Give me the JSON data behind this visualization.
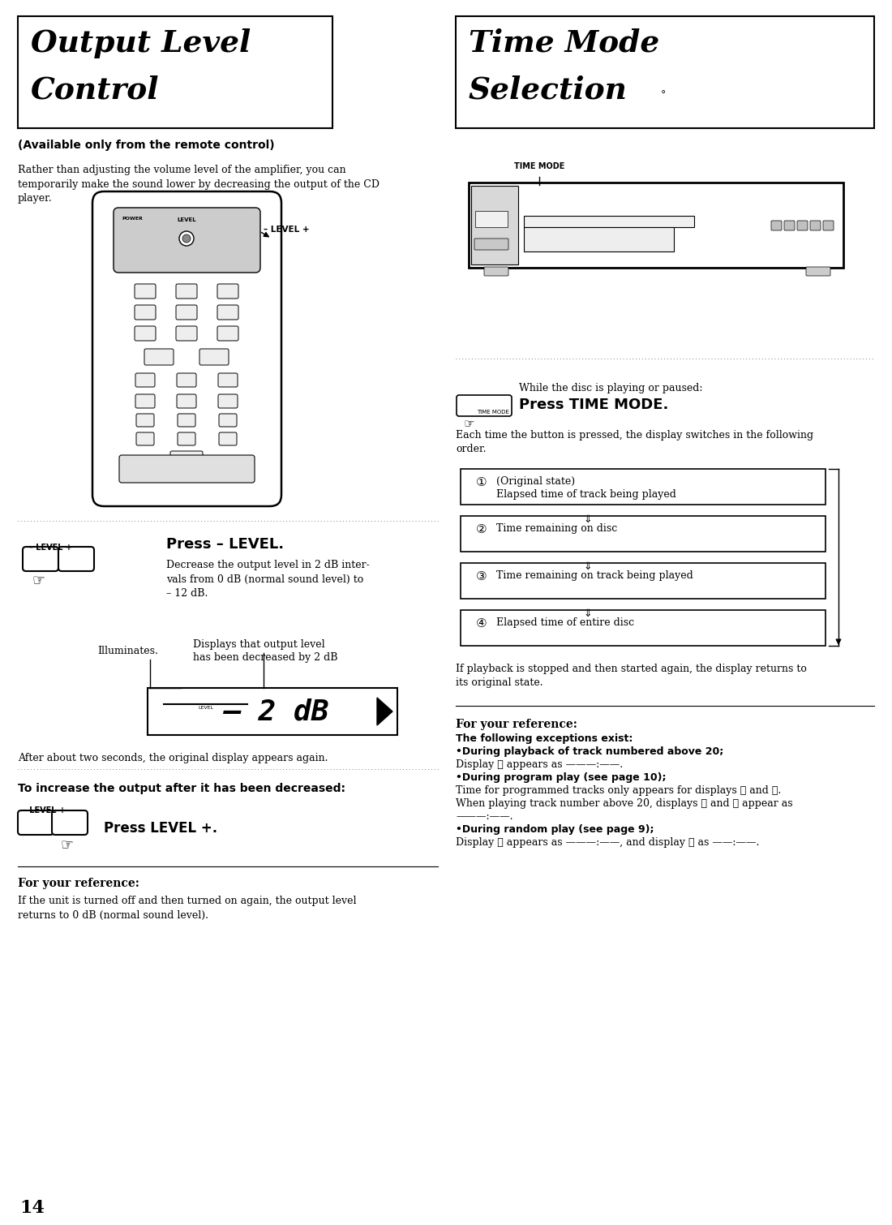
{
  "bg_color": "#ffffff",
  "page_number": "14",
  "left_title_line1": "Output Level",
  "left_title_line2": "Control",
  "right_title_line1": "Time Mode",
  "right_title_line2": "Selection",
  "left_subtitle": "(Available only from the remote control)",
  "left_body1": "Rather than adjusting the volume level of the amplifier, you can\ntemporarily make the sound lower by decreasing the output of the CD\nplayer.",
  "press_minus_level_title": "Press – LEVEL.",
  "press_minus_level_body": "Decrease the output level in 2 dB inter-\nvals from 0 dB (normal sound level) to\n– 12 dB.",
  "illuminates_label": "Illuminates.",
  "display_label": "Displays that output level\nhas been decreased by 2 dB",
  "after_seconds": "After about two seconds, the original display appears again.",
  "increase_title": "To increase the output after it has been decreased:",
  "press_level_plus": "Press LEVEL +.",
  "for_ref_left_title": "For your reference:",
  "for_ref_left_body": "If the unit is turned off and then turned on again, the output level\nreturns to 0 dB (normal sound level).",
  "right_press_title": "While the disc is playing or paused:",
  "right_press_body": "Press TIME MODE.",
  "right_each_time": "Each time the button is pressed, the display switches in the following\norder.",
  "mode_nums": [
    "①",
    "②",
    "③",
    "④"
  ],
  "mode_texts": [
    "(Original state)\nElapsed time of track being played",
    "Time remaining on disc",
    "Time remaining on track being played",
    "Elapsed time of entire disc"
  ],
  "right_playback": "If playback is stopped and then started again, the display returns to\nits original state.",
  "for_ref_right_title": "For your reference:",
  "for_ref_right_lines": [
    [
      "bold",
      "The following exceptions exist:"
    ],
    [
      "bold",
      "•During playback of track numbered above 20;"
    ],
    [
      "normal",
      "Display ③ appears as ———:——."
    ],
    [
      "bold",
      "•During program play (see page 10);"
    ],
    [
      "normal",
      "Time for programmed tracks only appears for displays ② and ④."
    ],
    [
      "normal",
      "When playing track number above 20, displays ② and ③ appear as"
    ],
    [
      "normal",
      "———:——."
    ],
    [
      "bold",
      "•During random play (see page 9);"
    ],
    [
      "normal",
      "Display ② appears as ———:——, and display ④ as ——:——."
    ]
  ]
}
